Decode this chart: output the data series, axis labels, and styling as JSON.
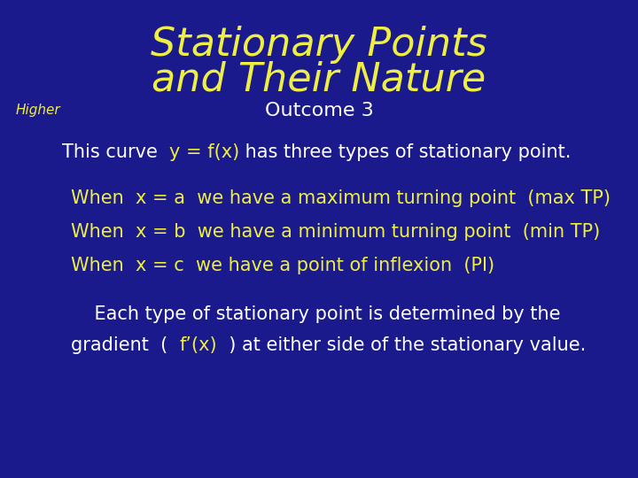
{
  "bg_color": "#1a1a8c",
  "title_line1": "Stationary Points",
  "title_line2": "and Their Nature",
  "title_color": "#eeee44",
  "title_fontsize": 32,
  "higher_text": "Higher",
  "higher_color": "#eeee44",
  "higher_fontsize": 11,
  "outcome_text": "Outcome 3",
  "outcome_color": "#ffffff",
  "outcome_fontsize": 16,
  "body_color": "#ffffff",
  "body_fontsize": 15,
  "yellow_color": "#eeee44",
  "yellow_fontsize": 15,
  "line1_p1": "This curve  ",
  "line1_h": "y = f(x)",
  "line1_p2": " has three types of stationary point.",
  "line2": "When  x = a  we have a maximum turning point  (max TP)",
  "line3": "When  x = b  we have a minimum turning point  (min TP)",
  "line4": "When  x = c  we have a point of inflexion  (PI)",
  "last1": "    Each type of stationary point is determined by the",
  "last2_p1": "gradient  (  ",
  "last2_h": "f’(x)",
  "last2_p2": "  ) at either side of the stationary value."
}
